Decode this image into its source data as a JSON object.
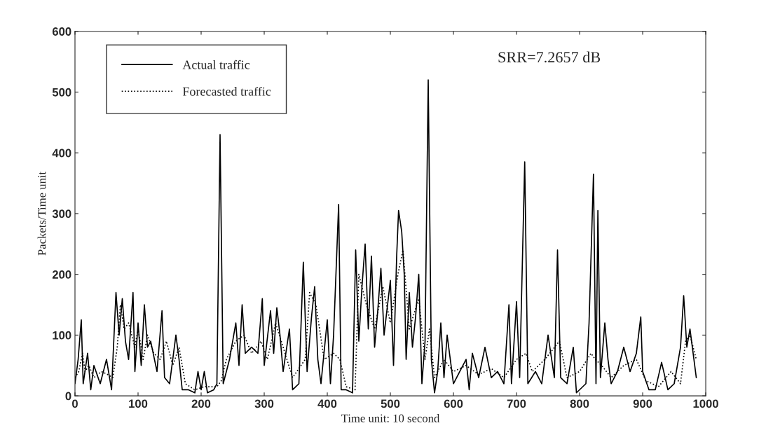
{
  "chart_data": {
    "type": "line",
    "xlabel": "Time unit: 10 second",
    "ylabel": "Packets/Time unit",
    "annotations": [
      "SRR=7.2657 dB"
    ],
    "xlim": [
      0,
      1000
    ],
    "ylim": [
      0,
      600
    ],
    "xticks": [
      0,
      100,
      200,
      300,
      400,
      500,
      600,
      700,
      800,
      900,
      1000
    ],
    "yticks": [
      0,
      100,
      200,
      300,
      400,
      500,
      600
    ],
    "legend": "top left",
    "series": [
      {
        "name": "Actual traffic",
        "color": "#000000",
        "line_style": "solid",
        "x": [
          0,
          5,
          10,
          13,
          20,
          25,
          30,
          40,
          50,
          58,
          65,
          70,
          75,
          80,
          85,
          92,
          95,
          100,
          105,
          110,
          115,
          120,
          130,
          138,
          142,
          150,
          160,
          165,
          170,
          180,
          190,
          195,
          200,
          205,
          210,
          220,
          225,
          230,
          235,
          245,
          255,
          260,
          265,
          270,
          280,
          290,
          297,
          300,
          310,
          315,
          320,
          325,
          330,
          340,
          345,
          355,
          362,
          368,
          375,
          380,
          385,
          390,
          400,
          405,
          410,
          418,
          422,
          430,
          440,
          445,
          450,
          455,
          460,
          465,
          470,
          475,
          480,
          485,
          490,
          500,
          505,
          510,
          513,
          518,
          522,
          525,
          530,
          535,
          540,
          545,
          550,
          555,
          560,
          565,
          570,
          575,
          580,
          585,
          590,
          600,
          610,
          620,
          625,
          630,
          640,
          650,
          660,
          670,
          680,
          688,
          692,
          700,
          705,
          713,
          718,
          730,
          740,
          750,
          760,
          765,
          770,
          780,
          790,
          795,
          810,
          815,
          822,
          826,
          829,
          833,
          840,
          845,
          850,
          860,
          870,
          880,
          890,
          897,
          900,
          910,
          920,
          930,
          940,
          950,
          960,
          965,
          970,
          975,
          985
        ],
        "values": [
          20,
          60,
          125,
          20,
          70,
          10,
          50,
          20,
          60,
          10,
          170,
          100,
          160,
          90,
          60,
          170,
          40,
          120,
          50,
          150,
          80,
          90,
          40,
          140,
          30,
          20,
          100,
          60,
          10,
          10,
          5,
          40,
          10,
          40,
          5,
          10,
          20,
          430,
          20,
          60,
          120,
          50,
          150,
          70,
          80,
          70,
          160,
          50,
          140,
          70,
          145,
          100,
          40,
          110,
          10,
          20,
          220,
          40,
          130,
          180,
          60,
          20,
          125,
          20,
          100,
          315,
          10,
          10,
          5,
          240,
          90,
          180,
          250,
          110,
          230,
          80,
          140,
          210,
          100,
          190,
          50,
          230,
          305,
          270,
          200,
          60,
          170,
          80,
          130,
          200,
          20,
          90,
          520,
          60,
          5,
          40,
          120,
          30,
          100,
          20,
          40,
          60,
          10,
          70,
          30,
          80,
          30,
          40,
          20,
          150,
          20,
          155,
          30,
          385,
          20,
          40,
          20,
          100,
          30,
          240,
          30,
          20,
          80,
          5,
          20,
          120,
          365,
          20,
          305,
          30,
          120,
          60,
          20,
          40,
          80,
          40,
          70,
          130,
          40,
          10,
          10,
          55,
          10,
          20,
          80,
          165,
          80,
          110,
          30
        ]
      },
      {
        "name": "Forecasted traffic",
        "color": "#000000",
        "line_style": "dotted",
        "x": [
          0,
          6,
          12,
          16,
          22,
          30,
          42,
          52,
          60,
          67,
          72,
          78,
          85,
          95,
          100,
          108,
          115,
          125,
          135,
          145,
          155,
          165,
          175,
          190,
          205,
          225,
          232,
          240,
          255,
          268,
          280,
          295,
          305,
          318,
          330,
          345,
          365,
          372,
          382,
          395,
          410,
          420,
          430,
          444,
          450,
          462,
          475,
          488,
          500,
          512,
          520,
          530,
          545,
          555,
          562,
          570,
          585,
          600,
          620,
          640,
          660,
          680,
          700,
          715,
          725,
          745,
          768,
          780,
          800,
          818,
          825,
          835,
          850,
          870,
          890,
          905,
          925,
          945,
          960,
          968,
          975,
          985
        ],
        "values": [
          30,
          40,
          70,
          40,
          50,
          30,
          40,
          35,
          30,
          80,
          150,
          110,
          120,
          80,
          110,
          60,
          100,
          70,
          60,
          90,
          50,
          80,
          20,
          10,
          15,
          15,
          25,
          60,
          90,
          100,
          70,
          90,
          60,
          120,
          80,
          30,
          60,
          170,
          150,
          60,
          70,
          60,
          15,
          10,
          200,
          150,
          110,
          180,
          120,
          200,
          240,
          110,
          160,
          60,
          110,
          30,
          60,
          40,
          50,
          35,
          45,
          30,
          60,
          70,
          40,
          60,
          90,
          30,
          40,
          70,
          60,
          50,
          30,
          50,
          60,
          25,
          15,
          40,
          20,
          90,
          100,
          60
        ]
      }
    ]
  }
}
